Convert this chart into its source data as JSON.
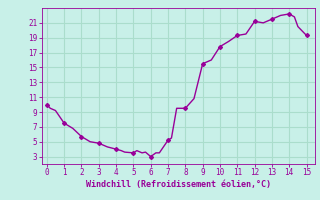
{
  "xlabel": "Windchill (Refroidissement éolien,°C)",
  "bg_color": "#c8f0e8",
  "line_color": "#990099",
  "marker_color": "#990099",
  "grid_color": "#aaddcc",
  "x": [
    0,
    0.2,
    0.5,
    1.0,
    1.5,
    2.0,
    2.5,
    3.0,
    3.5,
    4.0,
    4.3,
    4.5,
    5.0,
    5.2,
    5.5,
    5.7,
    6.0,
    6.3,
    6.5,
    7.0,
    7.2,
    7.5,
    8.0,
    8.5,
    9.0,
    9.5,
    10.0,
    10.5,
    11.0,
    11.5,
    12.0,
    12.5,
    13.0,
    13.5,
    14.0,
    14.3,
    14.5,
    15.0
  ],
  "y": [
    10.0,
    9.5,
    9.2,
    7.5,
    6.8,
    5.7,
    5.0,
    4.8,
    4.3,
    4.0,
    3.8,
    3.6,
    3.5,
    3.8,
    3.5,
    3.6,
    3.0,
    3.5,
    3.5,
    5.2,
    5.5,
    9.5,
    9.5,
    10.8,
    15.5,
    16.0,
    17.8,
    18.5,
    19.3,
    19.5,
    21.2,
    21.0,
    21.5,
    22.0,
    22.2,
    21.8,
    20.5,
    19.3
  ],
  "marker_x": [
    0,
    1,
    2,
    3,
    4,
    5,
    6,
    7,
    8,
    9,
    10,
    11,
    12,
    13,
    14,
    15
  ],
  "marker_y": [
    10.0,
    7.5,
    5.7,
    4.8,
    4.0,
    3.5,
    3.0,
    5.2,
    9.5,
    15.5,
    17.8,
    19.3,
    21.2,
    21.5,
    22.2,
    19.3
  ],
  "xlim": [
    -0.3,
    15.5
  ],
  "ylim": [
    2,
    23
  ],
  "yticks": [
    3,
    5,
    7,
    9,
    11,
    13,
    15,
    17,
    19,
    21
  ],
  "xticks": [
    0,
    1,
    2,
    3,
    4,
    5,
    6,
    7,
    8,
    9,
    10,
    11,
    12,
    13,
    14,
    15
  ]
}
